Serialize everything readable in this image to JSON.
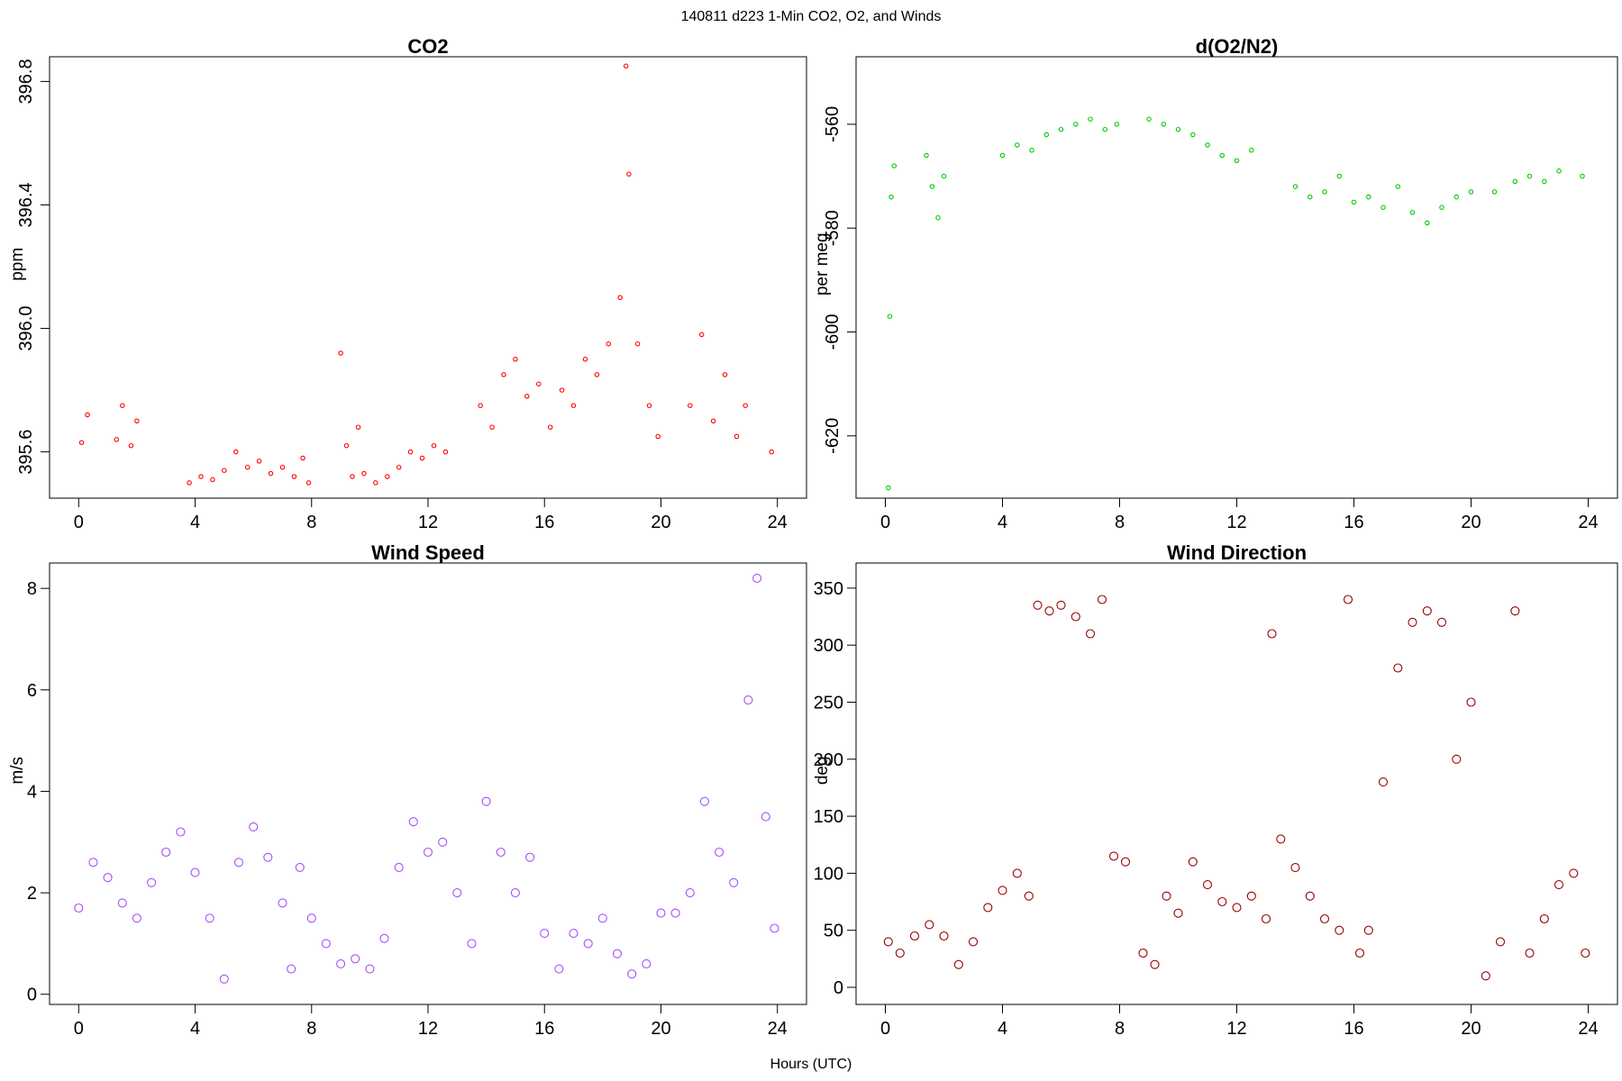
{
  "figure": {
    "suptitle": "140811   d223   1-Min CO2, O2, and Winds",
    "xlabel": "Hours (UTC)"
  },
  "chart_data": [
    {
      "id": "co2",
      "type": "scatter",
      "title": "CO2",
      "xlabel": "",
      "ylabel": "ppm",
      "xlim": [
        -1,
        25
      ],
      "ylim": [
        395.45,
        396.88
      ],
      "xticks": [
        0,
        4,
        8,
        12,
        16,
        20,
        24
      ],
      "yticks": [
        395.6,
        396.0,
        396.4,
        396.8
      ],
      "ytick_labels": [
        "395.6",
        "396.0",
        "396.4",
        "396.8"
      ],
      "color": "#ff0000",
      "marker_size": "small",
      "series": [
        {
          "name": "CO2",
          "x": [
            0.1,
            0.3,
            1.3,
            1.5,
            1.8,
            2.0,
            3.8,
            4.2,
            4.6,
            5.0,
            5.4,
            5.8,
            6.2,
            6.6,
            7.0,
            7.4,
            7.7,
            7.9,
            9.0,
            9.2,
            9.4,
            9.6,
            9.8,
            10.2,
            10.6,
            11.0,
            11.4,
            11.8,
            12.2,
            12.6,
            13.8,
            14.2,
            14.6,
            15.0,
            15.4,
            15.8,
            16.2,
            16.6,
            17.0,
            17.4,
            17.8,
            18.2,
            18.6,
            18.8,
            18.9,
            19.2,
            19.6,
            19.9,
            21.0,
            21.4,
            21.8,
            22.2,
            22.6,
            22.9,
            23.8
          ],
          "y": [
            395.63,
            395.72,
            395.64,
            395.75,
            395.62,
            395.7,
            395.5,
            395.52,
            395.51,
            395.54,
            395.6,
            395.55,
            395.57,
            395.53,
            395.55,
            395.52,
            395.58,
            395.5,
            395.92,
            395.62,
            395.52,
            395.68,
            395.53,
            395.5,
            395.52,
            395.55,
            395.6,
            395.58,
            395.62,
            395.6,
            395.75,
            395.68,
            395.85,
            395.9,
            395.78,
            395.82,
            395.68,
            395.8,
            395.75,
            395.9,
            395.85,
            395.95,
            396.1,
            396.85,
            396.5,
            395.95,
            395.75,
            395.65,
            395.75,
            395.98,
            395.7,
            395.85,
            395.65,
            395.75,
            395.6
          ]
        }
      ]
    },
    {
      "id": "o2",
      "type": "scatter",
      "title": "d(O2/N2)",
      "xlabel": "",
      "ylabel": "per meg",
      "xlim": [
        -1,
        25
      ],
      "ylim": [
        -632,
        -547
      ],
      "xticks": [
        0,
        4,
        8,
        12,
        16,
        20,
        24
      ],
      "yticks": [
        -620,
        -600,
        -580,
        -560
      ],
      "ytick_labels": [
        "-620",
        "-600",
        "-580",
        "-560"
      ],
      "color": "#00cc00",
      "marker_size": "small",
      "series": [
        {
          "name": "d(O2/N2)",
          "x": [
            0.1,
            0.15,
            0.2,
            0.3,
            1.4,
            1.6,
            1.8,
            2.0,
            4.0,
            4.5,
            5.0,
            5.5,
            6.0,
            6.5,
            7.0,
            7.5,
            7.9,
            9.0,
            9.5,
            10.0,
            10.5,
            11.0,
            11.5,
            12.0,
            12.5,
            14.0,
            14.5,
            15.0,
            15.5,
            16.0,
            16.5,
            17.0,
            17.5,
            18.0,
            18.5,
            19.0,
            19.5,
            20.0,
            20.8,
            21.5,
            22.0,
            22.5,
            23.0,
            23.8
          ],
          "y": [
            -630,
            -597,
            -574,
            -568,
            -566,
            -572,
            -578,
            -570,
            -566,
            -564,
            -565,
            -562,
            -561,
            -560,
            -559,
            -561,
            -560,
            -559,
            -560,
            -561,
            -562,
            -564,
            -566,
            -567,
            -565,
            -572,
            -574,
            -573,
            -570,
            -575,
            -574,
            -576,
            -572,
            -577,
            -579,
            -576,
            -574,
            -573,
            -573,
            -571,
            -570,
            -571,
            -569,
            -570
          ]
        }
      ]
    },
    {
      "id": "ws",
      "type": "scatter",
      "title": "Wind Speed",
      "xlabel": "",
      "ylabel": "m/s",
      "xlim": [
        -1,
        25
      ],
      "ylim": [
        -0.2,
        8.5
      ],
      "xticks": [
        0,
        4,
        8,
        12,
        16,
        20,
        24
      ],
      "yticks": [
        0,
        2,
        4,
        6,
        8
      ],
      "ytick_labels": [
        "0",
        "2",
        "4",
        "6",
        "8"
      ],
      "color": "#a64dff",
      "marker_size": "large",
      "series": [
        {
          "name": "Wind Speed",
          "x": [
            0.0,
            0.5,
            1.0,
            1.5,
            2.0,
            2.5,
            3.0,
            3.5,
            4.0,
            4.5,
            5.0,
            5.5,
            6.0,
            6.5,
            7.0,
            7.3,
            7.6,
            8.0,
            8.5,
            9.0,
            9.5,
            10.0,
            10.5,
            11.0,
            11.5,
            12.0,
            12.5,
            13.0,
            13.5,
            14.0,
            14.5,
            15.0,
            15.5,
            16.0,
            16.5,
            17.0,
            17.5,
            18.0,
            18.5,
            19.0,
            19.5,
            20.0,
            20.5,
            21.0,
            21.5,
            22.0,
            22.5,
            23.0,
            23.3,
            23.6,
            23.9
          ],
          "y": [
            1.7,
            2.6,
            2.3,
            1.8,
            1.5,
            2.2,
            2.8,
            3.2,
            2.4,
            1.5,
            0.3,
            2.6,
            3.3,
            2.7,
            1.8,
            0.5,
            2.5,
            1.5,
            1.0,
            0.6,
            0.7,
            0.5,
            1.1,
            2.5,
            3.4,
            2.8,
            3.0,
            2.0,
            1.0,
            3.8,
            2.8,
            2.0,
            2.7,
            1.2,
            0.5,
            1.2,
            1.0,
            1.5,
            0.8,
            0.4,
            0.6,
            1.6,
            1.6,
            2.0,
            3.8,
            2.8,
            2.2,
            5.8,
            8.2,
            3.5,
            1.3
          ]
        }
      ]
    },
    {
      "id": "wd",
      "type": "scatter",
      "title": "Wind Direction",
      "xlabel": "",
      "ylabel": "deg",
      "xlim": [
        -1,
        25
      ],
      "ylim": [
        -15,
        372
      ],
      "xticks": [
        0,
        4,
        8,
        12,
        16,
        20,
        24
      ],
      "yticks": [
        0,
        50,
        100,
        150,
        200,
        250,
        300,
        350
      ],
      "ytick_labels": [
        "0",
        "50",
        "100",
        "150",
        "200",
        "250",
        "300",
        "350"
      ],
      "color": "#990000",
      "marker_size": "large",
      "series": [
        {
          "name": "Wind Direction",
          "x": [
            0.1,
            0.5,
            1.0,
            1.5,
            2.0,
            2.5,
            3.0,
            3.5,
            4.0,
            4.5,
            4.9,
            5.2,
            5.6,
            6.0,
            6.5,
            7.0,
            7.4,
            7.8,
            8.2,
            8.8,
            9.2,
            9.6,
            10.0,
            10.5,
            11.0,
            11.5,
            12.0,
            12.5,
            13.0,
            13.2,
            13.5,
            14.0,
            14.5,
            15.0,
            15.5,
            15.8,
            16.2,
            16.5,
            17.0,
            17.5,
            18.0,
            18.5,
            19.0,
            19.5,
            20.0,
            20.5,
            21.0,
            21.5,
            22.0,
            22.5,
            23.0,
            23.5,
            23.9
          ],
          "y": [
            40,
            30,
            45,
            55,
            45,
            20,
            40,
            70,
            85,
            100,
            80,
            335,
            330,
            335,
            325,
            310,
            340,
            115,
            110,
            30,
            20,
            80,
            65,
            110,
            90,
            75,
            70,
            80,
            60,
            310,
            130,
            105,
            80,
            60,
            50,
            340,
            30,
            50,
            180,
            280,
            320,
            330,
            320,
            200,
            250,
            10,
            40,
            330,
            30,
            60,
            90,
            100,
            30
          ]
        }
      ]
    }
  ]
}
